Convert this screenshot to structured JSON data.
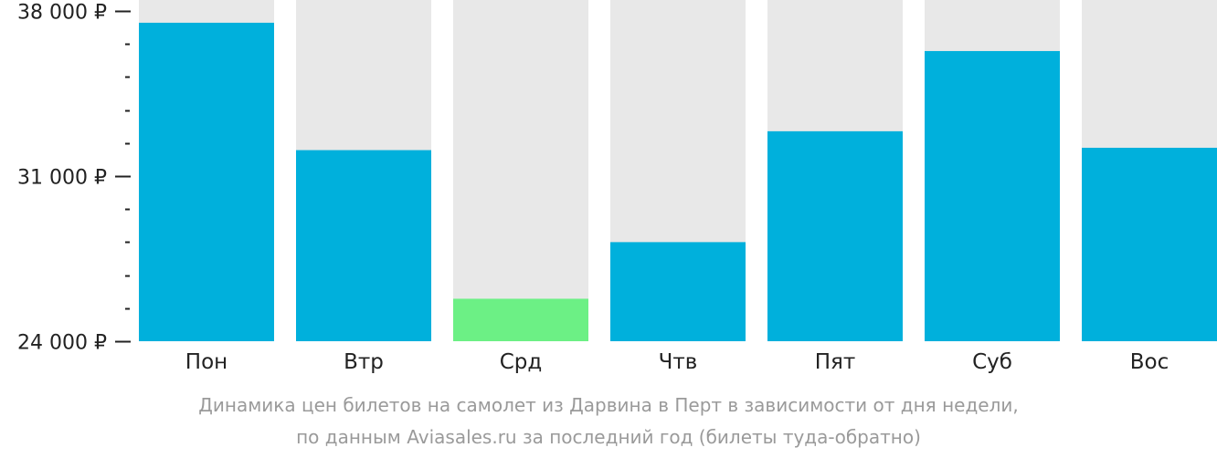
{
  "chart_data": {
    "type": "bar",
    "categories": [
      "Пон",
      "Втр",
      "Срд",
      "Чтв",
      "Пят",
      "Суб",
      "Вос"
    ],
    "values": [
      37500,
      32100,
      25800,
      28200,
      32900,
      36300,
      32200
    ],
    "ylim": [
      24000,
      38000
    ],
    "y_major_ticks": [
      24000,
      31000,
      38000
    ],
    "y_tick_labels": [
      "24 000 ₽",
      "31 000 ₽",
      "38 000 ₽"
    ],
    "y_minor_step": 1400,
    "highlight_index": 2,
    "grid": false,
    "colors": {
      "bar": "#00b0dc",
      "bar_min": "#6cf085",
      "background_track": "#e8e8e8",
      "axis": "#222222",
      "caption": "#9a9a9a"
    }
  },
  "caption": {
    "line1": "Динамика цен билетов на самолет из Дарвина в Перт в зависимости от дня недели,",
    "line2": "по данным Aviasales.ru за последний год (билеты туда-обратно)"
  }
}
